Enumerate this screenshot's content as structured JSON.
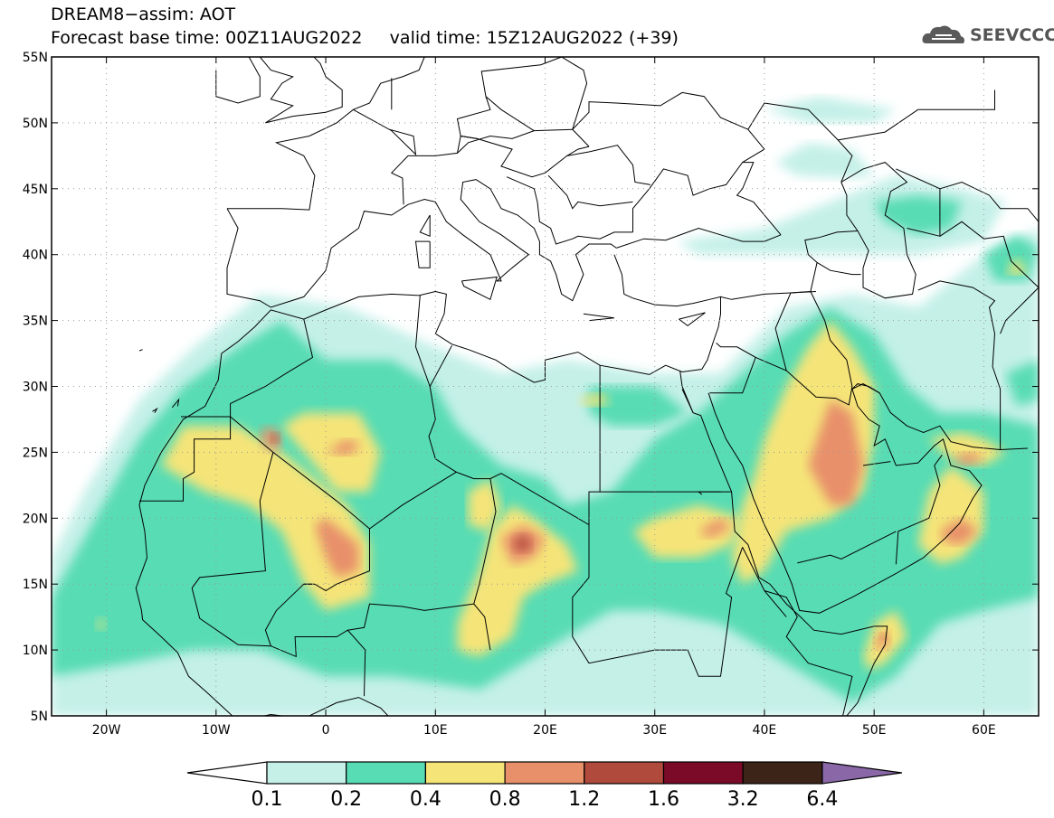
{
  "header": {
    "title_line1": "DREAM8−assim: AOT",
    "title_line2": "Forecast base time: 00Z11AUG2022     valid time: 15Z12AUG2022 (+39)"
  },
  "logo": {
    "text": "SEEVCCC",
    "icon": "cloud-icon"
  },
  "map": {
    "variable": "AOT",
    "lon_range": [
      -25,
      65
    ],
    "lat_range": [
      5,
      55
    ],
    "lat_ticks": [
      {
        "value": 55,
        "label": "55N"
      },
      {
        "value": 50,
        "label": "50N"
      },
      {
        "value": 45,
        "label": "45N"
      },
      {
        "value": 40,
        "label": "40N"
      },
      {
        "value": 35,
        "label": "35N"
      },
      {
        "value": 30,
        "label": "30N"
      },
      {
        "value": 25,
        "label": "25N"
      },
      {
        "value": 20,
        "label": "20N"
      },
      {
        "value": 15,
        "label": "15N"
      },
      {
        "value": 10,
        "label": "10N"
      },
      {
        "value": 5,
        "label": "5N"
      }
    ],
    "lon_ticks": [
      {
        "value": -20,
        "label": "20W"
      },
      {
        "value": -10,
        "label": "10W"
      },
      {
        "value": 0,
        "label": "0"
      },
      {
        "value": 10,
        "label": "10E"
      },
      {
        "value": 20,
        "label": "20E"
      },
      {
        "value": 30,
        "label": "30E"
      },
      {
        "value": 40,
        "label": "40E"
      },
      {
        "value": 50,
        "label": "50E"
      },
      {
        "value": 60,
        "label": "60E"
      }
    ],
    "grid": "dotted"
  },
  "colorbar": {
    "levels": [
      "0.1",
      "0.2",
      "0.4",
      "0.8",
      "1.2",
      "1.6",
      "3.2",
      "6.4"
    ],
    "colors": [
      "#ffffff",
      "#c4f0e8",
      "#58dcb4",
      "#f5e478",
      "#e8906a",
      "#b04a3c",
      "#7a0a28",
      "#3c2418",
      "#8a68a8"
    ]
  }
}
